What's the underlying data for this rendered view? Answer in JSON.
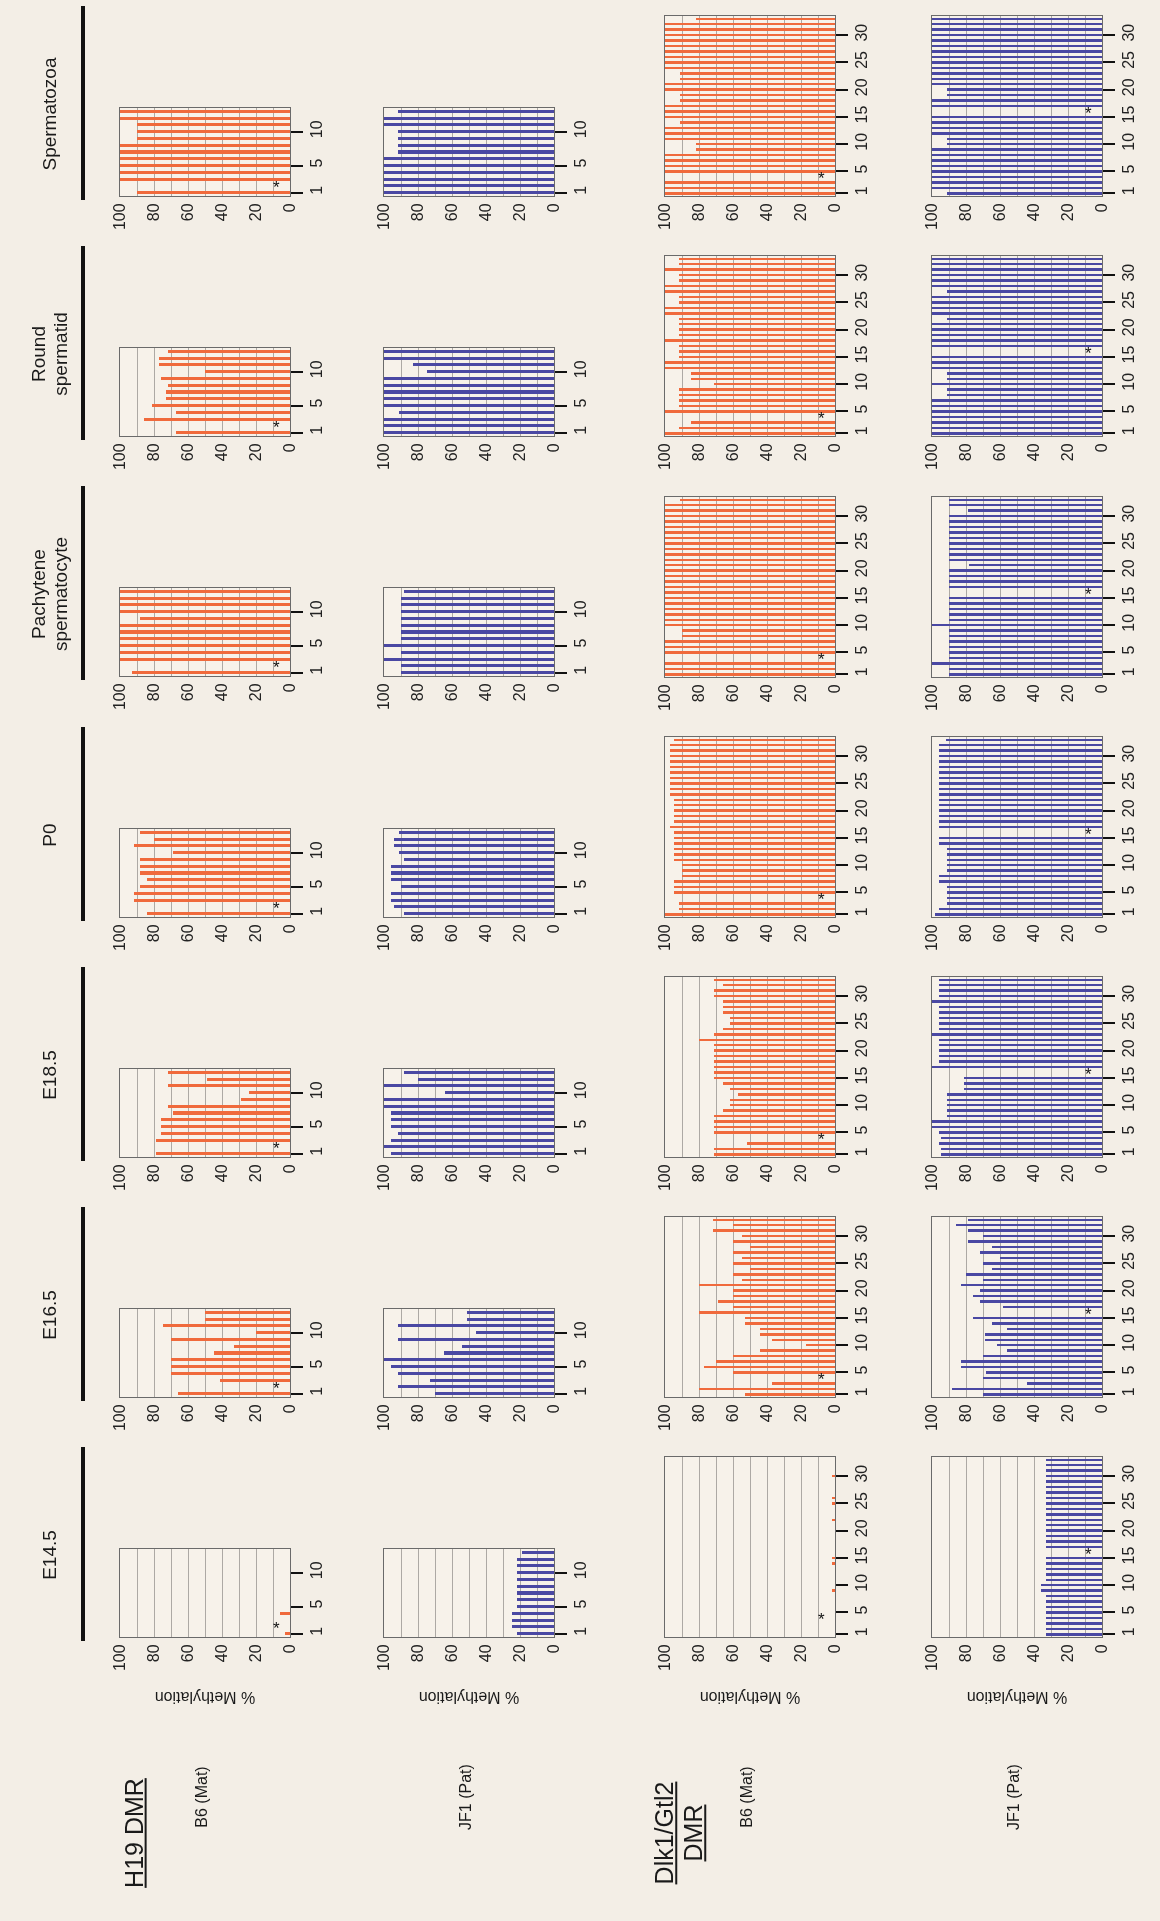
{
  "chart_data": [
    {
      "type": "bar",
      "orientation": "horizontal",
      "title": "Spermatozoa",
      "categories": [
        null,
        null,
        null,
        "10",
        null,
        null,
        null,
        null,
        "5",
        null,
        null,
        null,
        "1"
      ],
      "values": [
        100,
        100,
        90,
        90,
        90,
        100,
        100,
        100,
        100,
        100,
        100,
        null,
        90
      ],
      "color": "#f06a3c",
      "xlim": [
        100,
        0
      ],
      "xticks": [
        100,
        {
          "value": 90,
          "label": null
        },
        80,
        {
          "value": 70,
          "label": null
        },
        60,
        {
          "value": 50,
          "label": null
        },
        40,
        {
          "value": 30,
          "label": null
        },
        20,
        {
          "value": 10,
          "label": null
        },
        0
      ],
      "grid": "x",
      "annotations": [
        "*"
      ]
    },
    {
      "type": "bar",
      "orientation": "horizontal",
      "categories": [
        null,
        null,
        null,
        "10",
        null,
        null,
        null,
        null,
        "5",
        null,
        null,
        null,
        "1"
      ],
      "values": [
        92,
        100,
        100,
        92,
        92,
        92,
        92,
        100,
        100,
        100,
        100,
        100,
        100
      ],
      "color": "#4a48a3",
      "xlim": [
        100,
        0
      ],
      "xticks": [
        100,
        {
          "value": 90,
          "label": null
        },
        80,
        {
          "value": 70,
          "label": null
        },
        60,
        {
          "value": 50,
          "label": null
        },
        40,
        {
          "value": 30,
          "label": null
        },
        20,
        {
          "value": 10,
          "label": null
        },
        0
      ],
      "grid": "x"
    },
    {
      "type": "bar",
      "orientation": "horizontal",
      "categories": [
        null,
        null,
        null,
        "30",
        null,
        null,
        null,
        null,
        "25",
        null,
        null,
        null,
        null,
        "20",
        null,
        null,
        null,
        null,
        "15",
        null,
        null,
        null,
        null,
        "10",
        null,
        null,
        null,
        null,
        "5",
        null,
        null,
        null,
        "1"
      ],
      "values": [
        82,
        100,
        100,
        100,
        100,
        100,
        100,
        100,
        100,
        100,
        91,
        91,
        100,
        100,
        91,
        91,
        100,
        100,
        100,
        91,
        100,
        100,
        100,
        82,
        82,
        100,
        100,
        100,
        100,
        null,
        100,
        100,
        100
      ],
      "color": "#f06a3c",
      "xlim": [
        100,
        0
      ],
      "xticks": [
        100,
        {
          "value": 90,
          "label": null
        },
        80,
        {
          "value": 70,
          "label": null
        },
        60,
        {
          "value": 50,
          "label": null
        },
        40,
        {
          "value": 30,
          "label": null
        },
        20,
        {
          "value": 10,
          "label": null
        },
        0
      ],
      "grid": "x",
      "annotations": [
        "*"
      ]
    },
    {
      "type": "bar",
      "orientation": "horizontal",
      "categories": [
        null,
        null,
        null,
        "30",
        null,
        null,
        null,
        null,
        "25",
        null,
        null,
        null,
        null,
        "20",
        null,
        null,
        null,
        null,
        "15",
        null,
        null,
        null,
        null,
        "10",
        null,
        null,
        null,
        null,
        "5",
        null,
        null,
        null,
        "1"
      ],
      "values": [
        100,
        100,
        100,
        100,
        100,
        100,
        100,
        100,
        100,
        100,
        100,
        100,
        100,
        91,
        91,
        100,
        100,
        null,
        100,
        100,
        100,
        100,
        91,
        91,
        100,
        100,
        100,
        100,
        100,
        100,
        100,
        100,
        91
      ],
      "color": "#4a48a3",
      "xlim": [
        100,
        0
      ],
      "xticks": [
        100,
        {
          "value": 90,
          "label": null
        },
        80,
        {
          "value": 70,
          "label": null
        },
        60,
        {
          "value": 50,
          "label": null
        },
        40,
        {
          "value": 30,
          "label": null
        },
        20,
        {
          "value": 10,
          "label": null
        },
        0
      ],
      "grid": "x",
      "annotations": [
        "*"
      ]
    },
    {
      "type": "bar",
      "orientation": "horizontal",
      "title": "Round spermatid",
      "categories": [
        null,
        null,
        null,
        "10",
        null,
        null,
        null,
        null,
        "5",
        null,
        null,
        null,
        "1"
      ],
      "values": [
        72,
        77,
        77,
        50,
        76,
        72,
        73,
        73,
        81,
        67,
        86,
        null,
        67
      ],
      "color": "#f06a3c",
      "xlim": [
        100,
        0
      ],
      "xticks": [
        100,
        {
          "value": 90,
          "label": null
        },
        80,
        {
          "value": 70,
          "label": null
        },
        60,
        {
          "value": 50,
          "label": null
        },
        40,
        {
          "value": 30,
          "label": null
        },
        20,
        {
          "value": 10,
          "label": null
        },
        0
      ],
      "grid": "x",
      "annotations": [
        "*"
      ]
    },
    {
      "type": "bar",
      "orientation": "horizontal",
      "categories": [
        null,
        null,
        null,
        "10",
        null,
        null,
        null,
        null,
        "5",
        null,
        null,
        null,
        "1"
      ],
      "values": [
        100,
        100,
        83,
        75,
        100,
        100,
        100,
        100,
        100,
        91,
        100,
        100,
        100
      ],
      "color": "#4a48a3",
      "xlim": [
        100,
        0
      ],
      "xticks": [
        100,
        {
          "value": 90,
          "label": null
        },
        80,
        {
          "value": 70,
          "label": null
        },
        60,
        {
          "value": 50,
          "label": null
        },
        40,
        {
          "value": 30,
          "label": null
        },
        20,
        {
          "value": 10,
          "label": null
        },
        0
      ],
      "grid": "x"
    },
    {
      "type": "bar",
      "orientation": "horizontal",
      "categories": [
        null,
        null,
        null,
        "30",
        null,
        null,
        null,
        null,
        "25",
        null,
        null,
        null,
        null,
        "20",
        null,
        null,
        null,
        null,
        "15",
        null,
        null,
        null,
        null,
        "10",
        null,
        null,
        null,
        null,
        "5",
        null,
        null,
        null,
        "1"
      ],
      "values": [
        92,
        92,
        100,
        92,
        92,
        100,
        100,
        92,
        92,
        100,
        100,
        92,
        92,
        92,
        92,
        100,
        92,
        92,
        92,
        100,
        100,
        85,
        85,
        71,
        92,
        92,
        92,
        92,
        100,
        null,
        85,
        92,
        100
      ],
      "color": "#f06a3c",
      "xlim": [
        100,
        0
      ],
      "xticks": [
        100,
        {
          "value": 90,
          "label": null
        },
        80,
        {
          "value": 70,
          "label": null
        },
        60,
        {
          "value": 50,
          "label": null
        },
        40,
        {
          "value": 30,
          "label": null
        },
        20,
        {
          "value": 10,
          "label": null
        },
        0
      ],
      "grid": "x",
      "annotations": [
        "*"
      ]
    },
    {
      "type": "bar",
      "orientation": "horizontal",
      "categories": [
        null,
        null,
        null,
        "30",
        null,
        null,
        null,
        null,
        "25",
        null,
        null,
        null,
        null,
        "20",
        null,
        null,
        null,
        null,
        "15",
        null,
        null,
        null,
        null,
        "10",
        null,
        null,
        null,
        null,
        "5",
        null,
        null,
        null,
        "1"
      ],
      "values": [
        100,
        100,
        100,
        100,
        100,
        100,
        91,
        100,
        100,
        100,
        100,
        91,
        100,
        100,
        100,
        100,
        100,
        null,
        100,
        100,
        100,
        91,
        91,
        100,
        91,
        91,
        100,
        100,
        100,
        100,
        100,
        100,
        100
      ],
      "color": "#4a48a3",
      "xlim": [
        100,
        0
      ],
      "xticks": [
        100,
        {
          "value": 90,
          "label": null
        },
        80,
        {
          "value": 70,
          "label": null
        },
        60,
        {
          "value": 50,
          "label": null
        },
        40,
        {
          "value": 30,
          "label": null
        },
        20,
        {
          "value": 10,
          "label": null
        },
        0
      ],
      "grid": "x",
      "annotations": [
        "*"
      ]
    },
    {
      "type": "bar",
      "orientation": "horizontal",
      "title": "Pachytene spermatocyte",
      "categories": [
        null,
        null,
        null,
        "10",
        null,
        null,
        null,
        null,
        "5",
        null,
        null,
        null,
        "1"
      ],
      "values": [
        100,
        100,
        100,
        100,
        88,
        100,
        100,
        100,
        100,
        100,
        100,
        null,
        93
      ],
      "color": "#f06a3c",
      "xlim": [
        100,
        0
      ],
      "xticks": [
        100,
        {
          "value": 90,
          "label": null
        },
        80,
        {
          "value": 70,
          "label": null
        },
        60,
        {
          "value": 50,
          "label": null
        },
        40,
        {
          "value": 30,
          "label": null
        },
        20,
        {
          "value": 10,
          "label": null
        },
        0
      ],
      "grid": "x",
      "annotations": [
        "*"
      ]
    },
    {
      "type": "bar",
      "orientation": "horizontal",
      "categories": [
        null,
        null,
        null,
        "10",
        null,
        null,
        null,
        null,
        "5",
        null,
        null,
        null,
        "1"
      ],
      "values": [
        88,
        90,
        90,
        90,
        90,
        90,
        90,
        90,
        100,
        90,
        100,
        90,
        90
      ],
      "color": "#4a48a3",
      "xlim": [
        100,
        0
      ],
      "xticks": [
        100,
        {
          "value": 90,
          "label": null
        },
        80,
        {
          "value": 70,
          "label": null
        },
        60,
        {
          "value": 50,
          "label": null
        },
        40,
        {
          "value": 30,
          "label": null
        },
        20,
        {
          "value": 10,
          "label": null
        },
        0
      ],
      "grid": "x"
    },
    {
      "type": "bar",
      "orientation": "horizontal",
      "categories": [
        null,
        null,
        null,
        "30",
        null,
        null,
        null,
        null,
        "25",
        null,
        null,
        null,
        null,
        "20",
        null,
        null,
        null,
        null,
        "15",
        null,
        null,
        null,
        null,
        "10",
        null,
        null,
        null,
        null,
        "5",
        null,
        null,
        null,
        "1"
      ],
      "values": [
        91,
        100,
        100,
        100,
        100,
        100,
        100,
        100,
        100,
        100,
        100,
        100,
        100,
        100,
        100,
        100,
        100,
        100,
        100,
        100,
        100,
        100,
        100,
        100,
        90,
        90,
        100,
        100,
        100,
        null,
        100,
        100,
        100
      ],
      "color": "#f06a3c",
      "xlim": [
        100,
        0
      ],
      "xticks": [
        100,
        {
          "value": 90,
          "label": null
        },
        80,
        {
          "value": 70,
          "label": null
        },
        60,
        {
          "value": 50,
          "label": null
        },
        40,
        {
          "value": 30,
          "label": null
        },
        20,
        {
          "value": 10,
          "label": null
        },
        0
      ],
      "grid": "x",
      "annotations": [
        "*"
      ]
    },
    {
      "type": "bar",
      "orientation": "horizontal",
      "categories": [
        null,
        null,
        null,
        "30",
        null,
        null,
        null,
        null,
        "25",
        null,
        null,
        null,
        null,
        "20",
        null,
        null,
        null,
        null,
        "15",
        null,
        null,
        null,
        null,
        "10",
        null,
        null,
        null,
        null,
        "5",
        null,
        null,
        null,
        "1"
      ],
      "values": [
        90,
        90,
        79,
        90,
        90,
        90,
        90,
        90,
        90,
        90,
        90,
        90,
        78,
        90,
        90,
        90,
        90,
        null,
        90,
        90,
        90,
        90,
        90,
        100,
        90,
        90,
        90,
        90,
        90,
        90,
        100,
        90,
        90
      ],
      "color": "#4a48a3",
      "xlim": [
        100,
        0
      ],
      "xticks": [
        100,
        {
          "value": 90,
          "label": null
        },
        80,
        {
          "value": 70,
          "label": null
        },
        60,
        {
          "value": 50,
          "label": null
        },
        40,
        {
          "value": 30,
          "label": null
        },
        20,
        {
          "value": 10,
          "label": null
        },
        0
      ],
      "grid": "x",
      "annotations": [
        "*"
      ]
    },
    {
      "type": "bar",
      "orientation": "horizontal",
      "title": "P0",
      "categories": [
        null,
        null,
        null,
        "10",
        null,
        null,
        null,
        null,
        "5",
        null,
        null,
        null,
        "1"
      ],
      "values": [
        88,
        80,
        92,
        69,
        88,
        88,
        88,
        84,
        88,
        92,
        92,
        null,
        84
      ],
      "color": "#f06a3c",
      "xlim": [
        100,
        0
      ],
      "xticks": [
        100,
        {
          "value": 90,
          "label": null
        },
        80,
        {
          "value": 70,
          "label": null
        },
        60,
        {
          "value": 50,
          "label": null
        },
        40,
        {
          "value": 30,
          "label": null
        },
        20,
        {
          "value": 10,
          "label": null
        },
        0
      ],
      "grid": "x",
      "annotations": [
        "*"
      ]
    },
    {
      "type": "bar",
      "orientation": "horizontal",
      "categories": [
        null,
        null,
        null,
        "10",
        null,
        null,
        null,
        null,
        "5",
        null,
        null,
        null,
        "1"
      ],
      "values": [
        91,
        94,
        94,
        91,
        88,
        96,
        96,
        96,
        90,
        96,
        96,
        94,
        88
      ],
      "color": "#4a48a3",
      "xlim": [
        100,
        0
      ],
      "xticks": [
        100,
        {
          "value": 90,
          "label": null
        },
        80,
        {
          "value": 70,
          "label": null
        },
        60,
        {
          "value": 50,
          "label": null
        },
        40,
        {
          "value": 30,
          "label": null
        },
        20,
        {
          "value": 10,
          "label": null
        },
        0
      ],
      "grid": "x"
    },
    {
      "type": "bar",
      "orientation": "horizontal",
      "categories": [
        null,
        null,
        null,
        "30",
        null,
        null,
        null,
        null,
        "25",
        null,
        null,
        null,
        null,
        "20",
        null,
        null,
        null,
        null,
        "15",
        null,
        null,
        null,
        null,
        "10",
        null,
        null,
        null,
        null,
        "5",
        null,
        null,
        null,
        "1"
      ],
      "values": [
        95,
        97,
        97,
        97,
        97,
        97,
        97,
        97,
        97,
        97,
        97,
        95,
        95,
        95,
        95,
        95,
        97,
        95,
        95,
        95,
        95,
        95,
        95,
        90,
        90,
        90,
        95,
        95,
        95,
        null,
        92,
        92,
        100
      ],
      "color": "#f06a3c",
      "xlim": [
        100,
        0
      ],
      "xticks": [
        100,
        {
          "value": 90,
          "label": null
        },
        80,
        {
          "value": 70,
          "label": null
        },
        60,
        {
          "value": 50,
          "label": null
        },
        40,
        {
          "value": 30,
          "label": null
        },
        20,
        {
          "value": 10,
          "label": null
        },
        0
      ],
      "grid": "x",
      "annotations": [
        "*"
      ]
    },
    {
      "type": "bar",
      "orientation": "horizontal",
      "categories": [
        null,
        null,
        null,
        "30",
        null,
        null,
        null,
        null,
        "25",
        null,
        null,
        null,
        null,
        "20",
        null,
        null,
        null,
        null,
        "15",
        null,
        null,
        null,
        null,
        "10",
        null,
        null,
        null,
        null,
        "5",
        null,
        null,
        null,
        "1"
      ],
      "values": [
        92,
        96,
        96,
        96,
        96,
        96,
        96,
        96,
        96,
        96,
        96,
        96,
        96,
        96,
        96,
        96,
        96,
        null,
        96,
        96,
        91,
        91,
        91,
        91,
        91,
        96,
        96,
        91,
        91,
        91,
        91,
        96,
        98
      ],
      "color": "#4a48a3",
      "xlim": [
        100,
        0
      ],
      "xticks": [
        100,
        {
          "value": 90,
          "label": null
        },
        80,
        {
          "value": 70,
          "label": null
        },
        60,
        {
          "value": 50,
          "label": null
        },
        40,
        {
          "value": 30,
          "label": null
        },
        20,
        {
          "value": 10,
          "label": null
        },
        0
      ],
      "grid": "x",
      "annotations": [
        "*"
      ]
    },
    {
      "type": "bar",
      "orientation": "horizontal",
      "title": "E18.5",
      "categories": [
        null,
        null,
        null,
        "10",
        null,
        null,
        null,
        null,
        "5",
        null,
        null,
        null,
        "1"
      ],
      "values": [
        72,
        49,
        72,
        24,
        29,
        72,
        69,
        76,
        76,
        76,
        79,
        null,
        79
      ],
      "color": "#f06a3c",
      "xlim": [
        100,
        0
      ],
      "xticks": [
        100,
        {
          "value": 90,
          "label": null
        },
        80,
        {
          "value": 70,
          "label": null
        },
        60,
        {
          "value": 50,
          "label": null
        },
        40,
        {
          "value": 30,
          "label": null
        },
        20,
        {
          "value": 10,
          "label": null
        },
        0
      ],
      "grid": "x",
      "annotations": [
        "*"
      ]
    },
    {
      "type": "bar",
      "orientation": "horizontal",
      "categories": [
        null,
        null,
        null,
        "10",
        null,
        null,
        null,
        null,
        "5",
        null,
        null,
        null,
        "1"
      ],
      "values": [
        88,
        80,
        100,
        64,
        100,
        100,
        96,
        96,
        96,
        92,
        96,
        100,
        96
      ],
      "color": "#4a48a3",
      "xlim": [
        100,
        0
      ],
      "xticks": [
        100,
        {
          "value": 90,
          "label": null
        },
        80,
        {
          "value": 70,
          "label": null
        },
        60,
        {
          "value": 50,
          "label": null
        },
        40,
        {
          "value": 30,
          "label": null
        },
        20,
        {
          "value": 10,
          "label": null
        },
        0
      ],
      "grid": "x"
    },
    {
      "type": "bar",
      "orientation": "horizontal",
      "categories": [
        null,
        null,
        null,
        "30",
        null,
        null,
        null,
        null,
        "25",
        null,
        null,
        null,
        null,
        "20",
        null,
        null,
        null,
        null,
        "15",
        null,
        null,
        null,
        null,
        "10",
        null,
        null,
        null,
        null,
        "5",
        null,
        null,
        null,
        "1"
      ],
      "values": [
        71,
        66,
        71,
        71,
        66,
        66,
        66,
        62,
        62,
        66,
        71,
        80,
        71,
        71,
        71,
        71,
        71,
        71,
        71,
        66,
        62,
        57,
        62,
        62,
        66,
        71,
        71,
        71,
        71,
        null,
        52,
        71,
        71
      ],
      "color": "#f06a3c",
      "xlim": [
        100,
        0
      ],
      "xticks": [
        100,
        {
          "value": 90,
          "label": null
        },
        80,
        {
          "value": 70,
          "label": null
        },
        60,
        {
          "value": 50,
          "label": null
        },
        40,
        {
          "value": 30,
          "label": null
        },
        20,
        {
          "value": 10,
          "label": null
        },
        0
      ],
      "grid": "x",
      "annotations": [
        "*"
      ]
    },
    {
      "type": "bar",
      "orientation": "horizontal",
      "categories": [
        null,
        null,
        null,
        "30",
        null,
        null,
        null,
        null,
        "25",
        null,
        null,
        null,
        null,
        "20",
        null,
        null,
        null,
        null,
        "15",
        null,
        null,
        null,
        null,
        "10",
        null,
        null,
        null,
        null,
        "5",
        null,
        null,
        null,
        "1"
      ],
      "values": [
        96,
        96,
        96,
        96,
        100,
        96,
        96,
        96,
        96,
        96,
        100,
        96,
        96,
        96,
        96,
        96,
        100,
        null,
        81,
        81,
        81,
        91,
        91,
        91,
        91,
        91,
        100,
        100,
        96,
        95,
        96,
        95,
        95
      ],
      "color": "#4a48a3",
      "xlim": [
        100,
        0
      ],
      "xticks": [
        100,
        {
          "value": 90,
          "label": null
        },
        80,
        {
          "value": 70,
          "label": null
        },
        60,
        {
          "value": 50,
          "label": null
        },
        40,
        {
          "value": 30,
          "label": null
        },
        20,
        {
          "value": 10,
          "label": null
        },
        0
      ],
      "grid": "x",
      "annotations": [
        "*"
      ]
    },
    {
      "type": "bar",
      "orientation": "horizontal",
      "title": "E16.5",
      "categories": [
        null,
        null,
        null,
        "10",
        null,
        null,
        null,
        null,
        "5",
        null,
        null,
        null,
        "1"
      ],
      "values": [
        50,
        50,
        75,
        20,
        70,
        33,
        45,
        70,
        70,
        70,
        41,
        null,
        66
      ],
      "color": "#f06a3c",
      "xlim": [
        100,
        0
      ],
      "xticks": [
        100,
        {
          "value": 90,
          "label": null
        },
        80,
        {
          "value": 70,
          "label": null
        },
        60,
        {
          "value": 50,
          "label": null
        },
        40,
        {
          "value": 30,
          "label": null
        },
        20,
        {
          "value": 10,
          "label": null
        },
        0
      ],
      "grid": "x",
      "annotations": [
        "*"
      ]
    },
    {
      "type": "bar",
      "orientation": "horizontal",
      "categories": [
        null,
        null,
        null,
        "10",
        null,
        null,
        null,
        null,
        "5",
        null,
        null,
        null,
        "1"
      ],
      "values": [
        51,
        51,
        92,
        46,
        92,
        54,
        65,
        100,
        96,
        92,
        73,
        92,
        70
      ],
      "color": "#4a48a3",
      "xlim": [
        100,
        0
      ],
      "xticks": [
        100,
        {
          "value": 90,
          "label": null
        },
        80,
        {
          "value": 70,
          "label": null
        },
        60,
        {
          "value": 50,
          "label": null
        },
        40,
        {
          "value": 30,
          "label": null
        },
        20,
        {
          "value": 10,
          "label": null
        },
        0
      ],
      "grid": "x"
    },
    {
      "type": "bar",
      "orientation": "horizontal",
      "categories": [
        null,
        null,
        null,
        "30",
        null,
        null,
        null,
        null,
        "25",
        null,
        null,
        null,
        null,
        "20",
        null,
        null,
        null,
        null,
        "15",
        null,
        null,
        null,
        null,
        "10",
        null,
        null,
        null,
        null,
        "5",
        null,
        null,
        null,
        "1"
      ],
      "values": [
        72,
        60,
        72,
        55,
        60,
        50,
        60,
        55,
        60,
        50,
        60,
        55,
        80,
        60,
        60,
        69,
        60,
        80,
        53,
        53,
        44,
        44,
        37,
        17,
        44,
        60,
        70,
        77,
        60,
        null,
        37,
        80,
        53
      ],
      "color": "#f06a3c",
      "xlim": [
        100,
        0
      ],
      "xticks": [
        100,
        {
          "value": 90,
          "label": null
        },
        80,
        {
          "value": 70,
          "label": null
        },
        60,
        {
          "value": 50,
          "label": null
        },
        40,
        {
          "value": 30,
          "label": null
        },
        20,
        {
          "value": 10,
          "label": null
        },
        0
      ],
      "grid": "x",
      "annotations": [
        "*"
      ]
    },
    {
      "type": "bar",
      "orientation": "horizontal",
      "categories": [
        null,
        null,
        null,
        "30",
        null,
        null,
        null,
        null,
        "25",
        null,
        null,
        null,
        null,
        "20",
        null,
        null,
        null,
        null,
        "15",
        null,
        null,
        null,
        null,
        "10",
        null,
        null,
        null,
        null,
        "5",
        null,
        null,
        null,
        "1"
      ],
      "values": [
        79,
        86,
        79,
        70,
        79,
        65,
        72,
        60,
        70,
        65,
        80,
        70,
        83,
        72,
        76,
        72,
        58,
        null,
        76,
        65,
        56,
        69,
        69,
        62,
        56,
        70,
        83,
        83,
        68,
        70,
        44,
        88,
        70
      ],
      "color": "#4a48a3",
      "xlim": [
        100,
        0
      ],
      "xticks": [
        100,
        {
          "value": 90,
          "label": null
        },
        80,
        {
          "value": 70,
          "label": null
        },
        60,
        {
          "value": 50,
          "label": null
        },
        40,
        {
          "value": 30,
          "label": null
        },
        20,
        {
          "value": 10,
          "label": null
        },
        0
      ],
      "grid": "x",
      "annotations": [
        "*"
      ]
    },
    {
      "type": "bar",
      "orientation": "horizontal",
      "title": "E14.5",
      "xlabel": "% Methylation",
      "categories": [
        null,
        null,
        null,
        "10",
        null,
        null,
        null,
        null,
        "5",
        null,
        null,
        null,
        "1"
      ],
      "values": [
        0,
        0,
        0,
        0,
        0,
        0,
        0,
        0,
        0,
        6,
        0,
        null,
        3
      ],
      "color": "#f06a3c",
      "xlim": [
        100,
        0
      ],
      "xticks": [
        100,
        {
          "value": 90,
          "label": null
        },
        80,
        {
          "value": 70,
          "label": null
        },
        60,
        {
          "value": 50,
          "label": null
        },
        40,
        {
          "value": 30,
          "label": null
        },
        20,
        {
          "value": 10,
          "label": null
        },
        0
      ],
      "grid": "x",
      "annotations": [
        "*",
        "H19 DMR",
        "B6 (Mat)"
      ]
    },
    {
      "type": "bar",
      "orientation": "horizontal",
      "xlabel": "% Methylation",
      "categories": [
        null,
        null,
        null,
        "10",
        null,
        null,
        null,
        null,
        "5",
        null,
        null,
        null,
        "1"
      ],
      "values": [
        19,
        22,
        22,
        22,
        22,
        22,
        22,
        22,
        22,
        25,
        25,
        25,
        22
      ],
      "color": "#4a48a3",
      "xlim": [
        100,
        0
      ],
      "xticks": [
        100,
        {
          "value": 90,
          "label": null
        },
        80,
        {
          "value": 70,
          "label": null
        },
        60,
        {
          "value": 50,
          "label": null
        },
        40,
        {
          "value": 30,
          "label": null
        },
        20,
        {
          "value": 10,
          "label": null
        },
        0
      ],
      "grid": "x",
      "annotations": [
        "JF1 (Pat)"
      ]
    },
    {
      "type": "bar",
      "orientation": "horizontal",
      "xlabel": "% Methylation",
      "categories": [
        null,
        null,
        null,
        "30",
        null,
        null,
        null,
        null,
        "25",
        null,
        null,
        null,
        null,
        "20",
        null,
        null,
        null,
        null,
        "15",
        null,
        null,
        null,
        null,
        "10",
        null,
        null,
        null,
        null,
        "5",
        null,
        null,
        null,
        "1"
      ],
      "values": [
        0,
        0,
        0,
        2,
        0,
        0,
        0,
        2,
        2,
        0,
        0,
        2,
        0,
        0,
        0,
        0,
        0,
        0,
        2,
        2,
        0,
        0,
        0,
        0,
        2,
        0,
        0,
        0,
        0,
        null,
        0,
        0,
        0
      ],
      "color": "#f06a3c",
      "xlim": [
        100,
        0
      ],
      "xticks": [
        100,
        {
          "value": 90,
          "label": null
        },
        80,
        {
          "value": 70,
          "label": null
        },
        60,
        {
          "value": 50,
          "label": null
        },
        40,
        {
          "value": 30,
          "label": null
        },
        20,
        {
          "value": 10,
          "label": null
        },
        0
      ],
      "grid": "x",
      "annotations": [
        "*",
        "Dlk1/Gtl2 DMR",
        "B6 (Mat)"
      ]
    },
    {
      "type": "bar",
      "orientation": "horizontal",
      "xlabel": "% Methylation",
      "categories": [
        null,
        null,
        null,
        "30",
        null,
        null,
        null,
        null,
        "25",
        null,
        null,
        null,
        null,
        "20",
        null,
        null,
        null,
        null,
        "15",
        null,
        null,
        null,
        null,
        "10",
        null,
        null,
        null,
        null,
        "5",
        null,
        null,
        null,
        "1"
      ],
      "values": [
        33,
        33,
        33,
        33,
        33,
        33,
        33,
        33,
        33,
        33,
        33,
        33,
        33,
        33,
        33,
        33,
        33,
        null,
        33,
        33,
        33,
        33,
        33,
        36,
        36,
        33,
        33,
        33,
        33,
        33,
        33,
        33,
        33
      ],
      "color": "#4a48a3",
      "xlim": [
        100,
        0
      ],
      "xticks": [
        100,
        {
          "value": 90,
          "label": null
        },
        80,
        {
          "value": 70,
          "label": null
        },
        60,
        {
          "value": 50,
          "label": null
        },
        40,
        {
          "value": 30,
          "label": null
        },
        20,
        {
          "value": 10,
          "label": null
        },
        0
      ],
      "grid": "x",
      "annotations": [
        "*",
        "JF1 (Pat)"
      ]
    }
  ]
}
